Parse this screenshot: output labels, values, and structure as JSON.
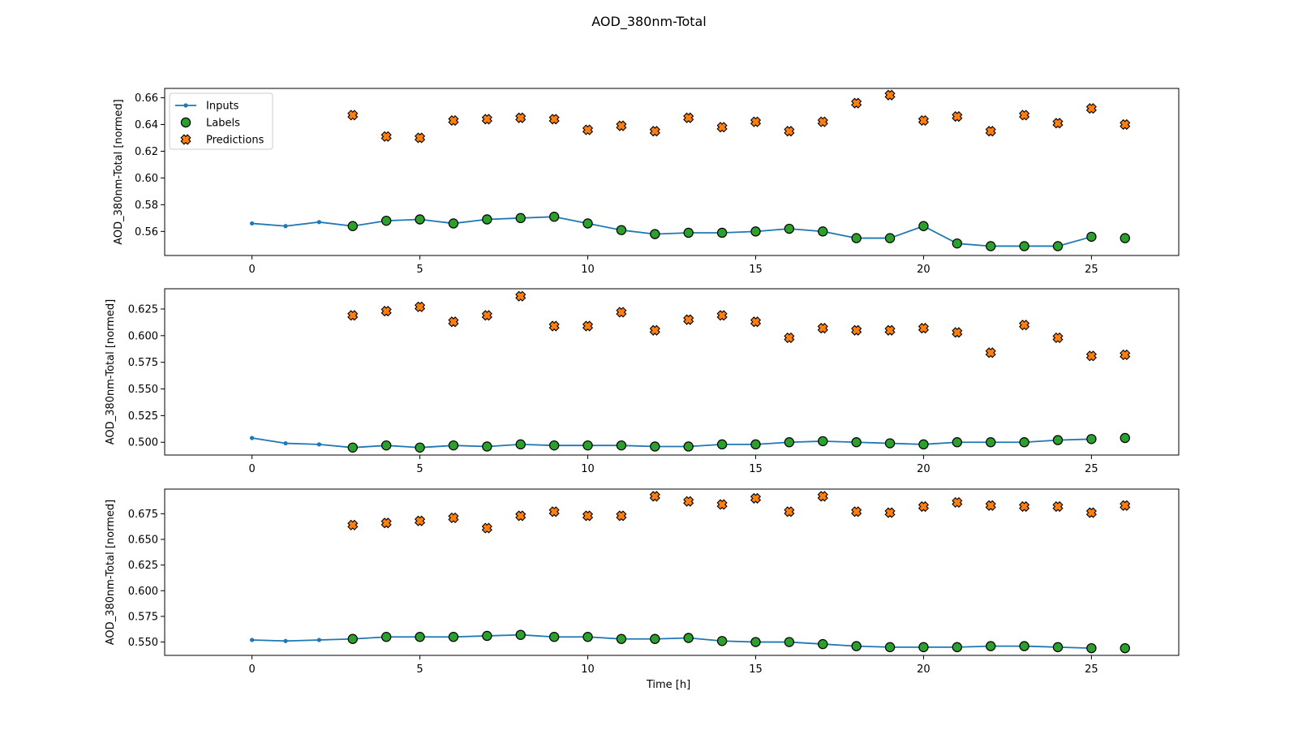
{
  "chart_data": {
    "type": "line",
    "title": "AOD_380nm-Total",
    "xlabel": "Time [h]",
    "legend": {
      "placement": "top-left",
      "entries": [
        "Inputs",
        "Labels",
        "Predictions"
      ]
    },
    "colors": {
      "inputs": "#1f77b4",
      "labels": "#2ca02c",
      "predictions": "#ff7f0e"
    },
    "x_ticks": [
      0,
      5,
      10,
      15,
      20,
      25
    ],
    "subplots": [
      {
        "ylabel": "AOD_380nm-Total [normed]",
        "ylim": [
          0.542,
          0.667
        ],
        "y_ticks": [
          0.56,
          0.58,
          0.6,
          0.62,
          0.64,
          0.66
        ],
        "y_tick_labels": [
          "0.56",
          "0.58",
          "0.60",
          "0.62",
          "0.64",
          "0.66"
        ],
        "show_legend": true,
        "inputs": {
          "x": [
            0,
            1,
            2,
            3,
            4,
            5,
            6,
            7,
            8,
            9,
            10,
            11,
            12,
            13,
            14,
            15,
            16,
            17,
            18,
            19,
            20,
            21,
            22,
            23,
            24,
            25
          ],
          "y": [
            0.566,
            0.564,
            0.567,
            0.564,
            0.568,
            0.569,
            0.566,
            0.569,
            0.57,
            0.571,
            0.566,
            0.561,
            0.558,
            0.559,
            0.559,
            0.56,
            0.562,
            0.56,
            0.555,
            0.555,
            0.564,
            0.551,
            0.549,
            0.549,
            0.549,
            0.556
          ]
        },
        "labels": {
          "x": [
            3,
            4,
            5,
            6,
            7,
            8,
            9,
            10,
            11,
            12,
            13,
            14,
            15,
            16,
            17,
            18,
            19,
            20,
            21,
            22,
            23,
            24,
            25,
            26
          ],
          "y": [
            0.564,
            0.568,
            0.569,
            0.566,
            0.569,
            0.57,
            0.571,
            0.566,
            0.561,
            0.558,
            0.559,
            0.559,
            0.56,
            0.562,
            0.56,
            0.555,
            0.555,
            0.564,
            0.551,
            0.549,
            0.549,
            0.549,
            0.556,
            0.555
          ]
        },
        "predictions": {
          "x": [
            3,
            4,
            5,
            6,
            7,
            8,
            9,
            10,
            11,
            12,
            13,
            14,
            15,
            16,
            17,
            18,
            19,
            20,
            21,
            22,
            23,
            24,
            25,
            26
          ],
          "y": [
            0.647,
            0.631,
            0.63,
            0.643,
            0.644,
            0.645,
            0.644,
            0.636,
            0.639,
            0.635,
            0.645,
            0.638,
            0.642,
            0.635,
            0.642,
            0.656,
            0.662,
            0.643,
            0.646,
            0.635,
            0.647,
            0.641,
            0.652,
            0.64
          ]
        }
      },
      {
        "ylabel": "AOD_380nm-Total [normed]",
        "ylim": [
          0.488,
          0.644
        ],
        "y_ticks": [
          0.5,
          0.525,
          0.55,
          0.575,
          0.6,
          0.625
        ],
        "y_tick_labels": [
          "0.500",
          "0.525",
          "0.550",
          "0.575",
          "0.600",
          "0.625"
        ],
        "show_legend": false,
        "inputs": {
          "x": [
            0,
            1,
            2,
            3,
            4,
            5,
            6,
            7,
            8,
            9,
            10,
            11,
            12,
            13,
            14,
            15,
            16,
            17,
            18,
            19,
            20,
            21,
            22,
            23,
            24,
            25
          ],
          "y": [
            0.504,
            0.499,
            0.498,
            0.495,
            0.497,
            0.495,
            0.497,
            0.496,
            0.498,
            0.497,
            0.497,
            0.497,
            0.496,
            0.496,
            0.498,
            0.498,
            0.5,
            0.501,
            0.5,
            0.499,
            0.498,
            0.5,
            0.5,
            0.5,
            0.502,
            0.503
          ]
        },
        "labels": {
          "x": [
            3,
            4,
            5,
            6,
            7,
            8,
            9,
            10,
            11,
            12,
            13,
            14,
            15,
            16,
            17,
            18,
            19,
            20,
            21,
            22,
            23,
            24,
            25,
            26
          ],
          "y": [
            0.495,
            0.497,
            0.495,
            0.497,
            0.496,
            0.498,
            0.497,
            0.497,
            0.497,
            0.496,
            0.496,
            0.498,
            0.498,
            0.5,
            0.501,
            0.5,
            0.499,
            0.498,
            0.5,
            0.5,
            0.5,
            0.502,
            0.503,
            0.504
          ]
        },
        "predictions": {
          "x": [
            3,
            4,
            5,
            6,
            7,
            8,
            9,
            10,
            11,
            12,
            13,
            14,
            15,
            16,
            17,
            18,
            19,
            20,
            21,
            22,
            23,
            24,
            25,
            26
          ],
          "y": [
            0.619,
            0.623,
            0.627,
            0.613,
            0.619,
            0.637,
            0.609,
            0.609,
            0.622,
            0.605,
            0.615,
            0.619,
            0.613,
            0.598,
            0.607,
            0.605,
            0.605,
            0.607,
            0.603,
            0.584,
            0.61,
            0.598,
            0.581,
            0.582
          ]
        }
      },
      {
        "ylabel": "AOD_380nm-Total [normed]",
        "ylim": [
          0.537,
          0.699
        ],
        "y_ticks": [
          0.55,
          0.575,
          0.6,
          0.625,
          0.65,
          0.675
        ],
        "y_tick_labels": [
          "0.550",
          "0.575",
          "0.600",
          "0.625",
          "0.650",
          "0.675"
        ],
        "show_legend": false,
        "inputs": {
          "x": [
            0,
            1,
            2,
            3,
            4,
            5,
            6,
            7,
            8,
            9,
            10,
            11,
            12,
            13,
            14,
            15,
            16,
            17,
            18,
            19,
            20,
            21,
            22,
            23,
            24,
            25
          ],
          "y": [
            0.552,
            0.551,
            0.552,
            0.553,
            0.555,
            0.555,
            0.555,
            0.556,
            0.557,
            0.555,
            0.555,
            0.553,
            0.553,
            0.554,
            0.551,
            0.55,
            0.55,
            0.548,
            0.546,
            0.545,
            0.545,
            0.545,
            0.546,
            0.546,
            0.545,
            0.544
          ]
        },
        "labels": {
          "x": [
            3,
            4,
            5,
            6,
            7,
            8,
            9,
            10,
            11,
            12,
            13,
            14,
            15,
            16,
            17,
            18,
            19,
            20,
            21,
            22,
            23,
            24,
            25,
            26
          ],
          "y": [
            0.553,
            0.555,
            0.555,
            0.555,
            0.556,
            0.557,
            0.555,
            0.555,
            0.553,
            0.553,
            0.554,
            0.551,
            0.55,
            0.55,
            0.548,
            0.546,
            0.545,
            0.545,
            0.545,
            0.546,
            0.546,
            0.545,
            0.544,
            0.544
          ]
        },
        "predictions": {
          "x": [
            3,
            4,
            5,
            6,
            7,
            8,
            9,
            10,
            11,
            12,
            13,
            14,
            15,
            16,
            17,
            18,
            19,
            20,
            21,
            22,
            23,
            24,
            25,
            26
          ],
          "y": [
            0.664,
            0.666,
            0.668,
            0.671,
            0.661,
            0.673,
            0.677,
            0.673,
            0.673,
            0.692,
            0.687,
            0.684,
            0.69,
            0.677,
            0.692,
            0.677,
            0.676,
            0.682,
            0.686,
            0.683,
            0.682,
            0.682,
            0.676,
            0.683
          ]
        }
      }
    ]
  }
}
